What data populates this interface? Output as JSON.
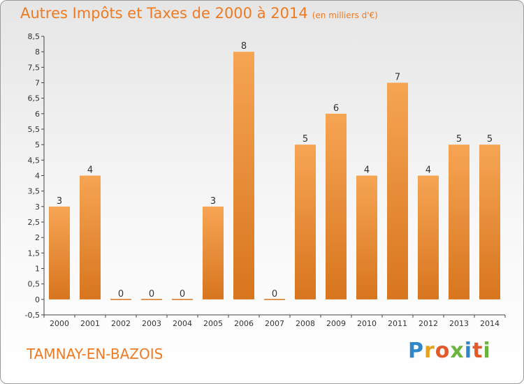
{
  "header": {
    "title": "Autres Impôts et Taxes de 2000 à 2014",
    "subtitle": "(en milliers d'€)"
  },
  "footer": {
    "commune": "TAMNAY-EN-BAZOIS",
    "logo_letters": [
      "P",
      "r",
      "o",
      "x",
      "i",
      "t",
      "i"
    ],
    "logo_colors": [
      "#2f86c9",
      "#e6a21e",
      "#e25a2a",
      "#6cb33f",
      "#2f86c9",
      "#e25a2a",
      "#6cb33f"
    ]
  },
  "colors": {
    "bar_light": "#f6a553",
    "bar_dark": "#d8751f",
    "title": "#f07a22",
    "axis": "#444444"
  },
  "chart_data": {
    "type": "bar",
    "categories": [
      "2000",
      "2001",
      "2002",
      "2003",
      "2004",
      "2005",
      "2006",
      "2007",
      "2008",
      "2009",
      "2010",
      "2011",
      "2012",
      "2013",
      "2014"
    ],
    "values": [
      3,
      4,
      0,
      0,
      0,
      3,
      8,
      0,
      5,
      6,
      4,
      7,
      4,
      5,
      5
    ],
    "data_labels": [
      "3",
      "4",
      "0",
      "0",
      "0",
      "3",
      "8",
      "0",
      "5",
      "6",
      "4",
      "7",
      "4",
      "5",
      "5"
    ],
    "yticks": [
      "-0,5",
      "0",
      "0,5",
      "1",
      "1,5",
      "2",
      "2,5",
      "3",
      "3,5",
      "4",
      "4,5",
      "5",
      "5,5",
      "6",
      "6,5",
      "7",
      "7,5",
      "8",
      "8,5"
    ],
    "ylim": [
      -0.5,
      8.5
    ],
    "grid": false,
    "xlabel": "",
    "ylabel": ""
  }
}
